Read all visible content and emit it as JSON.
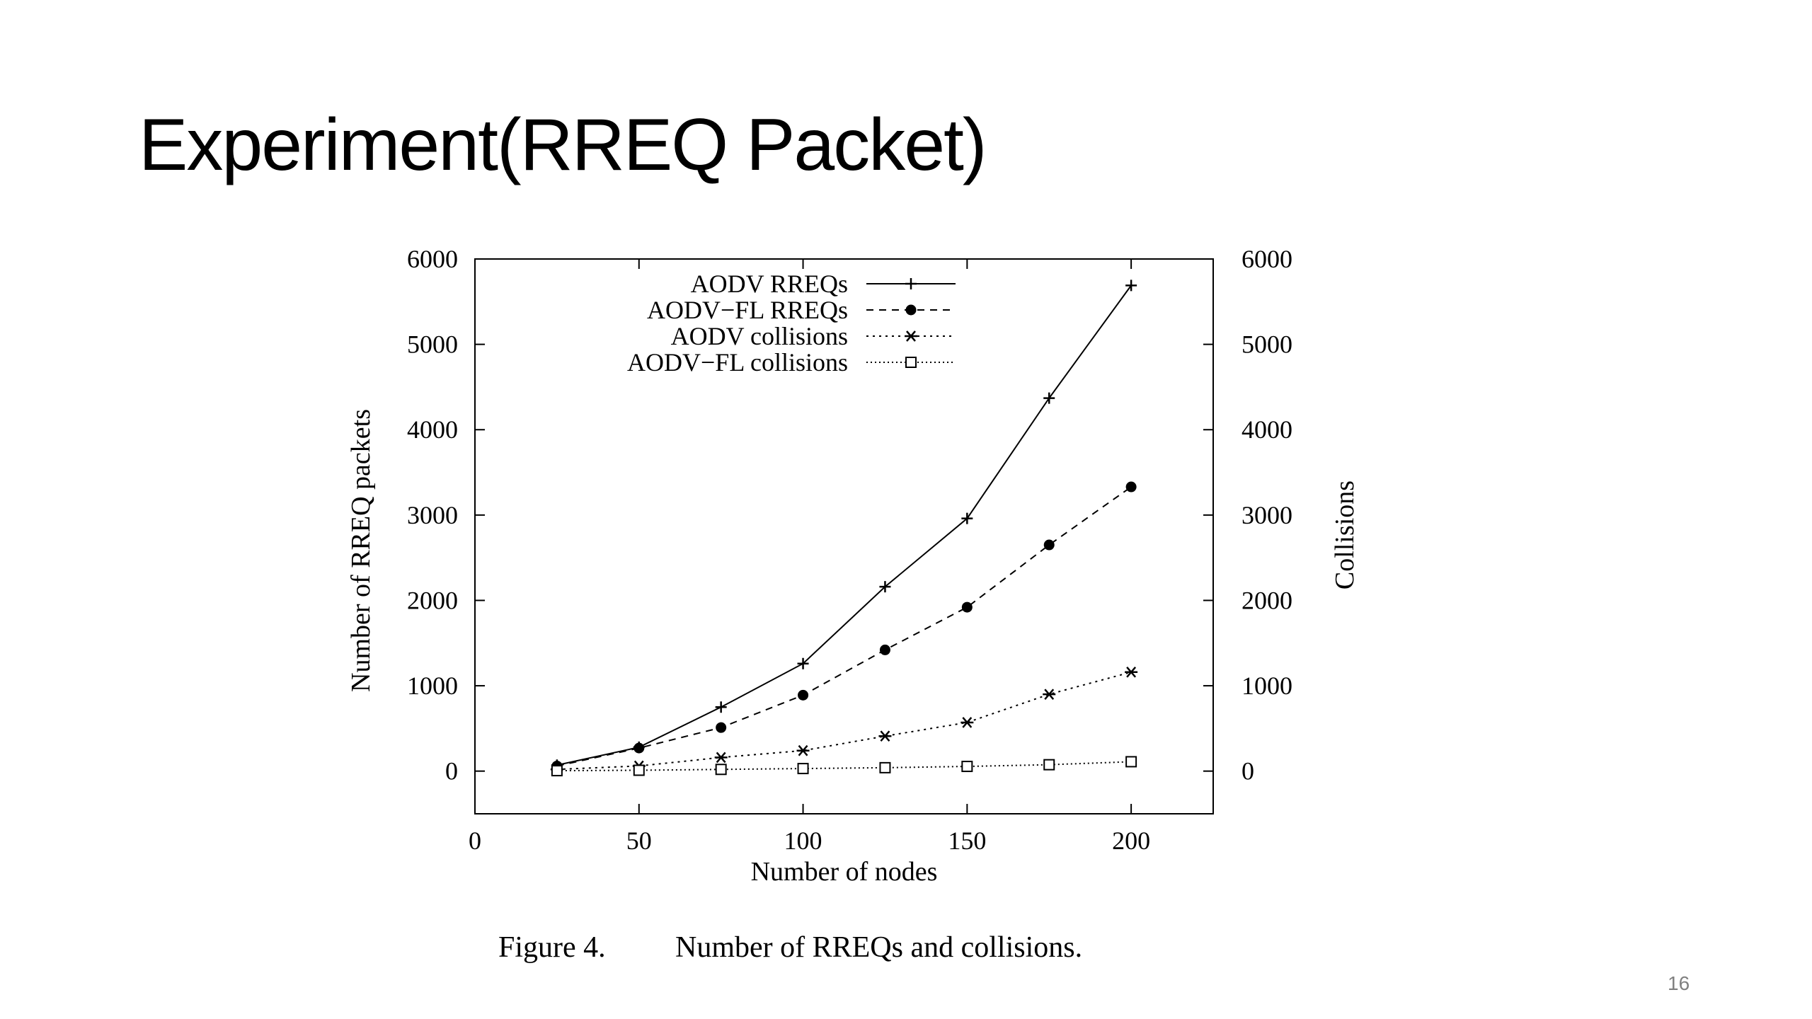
{
  "slide": {
    "title": "Experiment(RREQ Packet)",
    "page_number": "16"
  },
  "chart_data": {
    "type": "line",
    "title": "",
    "caption_label": "Figure 4.",
    "caption_text": "Number of RREQs and collisions.",
    "xlabel": "Number of nodes",
    "ylabel": "Number of RREQ packets",
    "y2label": "Collisions",
    "xlim": [
      0,
      225
    ],
    "ylim": [
      -500,
      6000
    ],
    "y2lim": [
      -500,
      6000
    ],
    "x_ticks": [
      0,
      50,
      100,
      150,
      200
    ],
    "y_ticks": [
      0,
      1000,
      2000,
      3000,
      4000,
      5000,
      6000
    ],
    "y2_ticks": [
      0,
      1000,
      2000,
      3000,
      4000,
      5000,
      6000
    ],
    "grid": false,
    "legend_position": "top-left",
    "x": [
      25,
      50,
      75,
      100,
      125,
      150,
      175,
      200
    ],
    "series": [
      {
        "name": "AODV RREQs",
        "axis": "left",
        "line_style": "solid",
        "marker": "plus",
        "values": [
          70,
          280,
          750,
          1260,
          2160,
          2960,
          4370,
          5690
        ]
      },
      {
        "name": "AODV−FL RREQs",
        "axis": "left",
        "line_style": "dashed",
        "marker": "filled-circle",
        "values": [
          60,
          270,
          510,
          890,
          1420,
          1920,
          2650,
          3330
        ]
      },
      {
        "name": "AODV collisions",
        "axis": "right",
        "line_style": "dotted",
        "marker": "asterisk",
        "values": [
          20,
          60,
          160,
          240,
          410,
          570,
          900,
          1160
        ]
      },
      {
        "name": "AODV−FL collisions",
        "axis": "right",
        "line_style": "fine-dotted",
        "marker": "open-square",
        "values": [
          5,
          10,
          20,
          30,
          40,
          55,
          75,
          110
        ]
      }
    ]
  },
  "colors": {
    "background": "#ffffff",
    "ink": "#000000",
    "slide_number": "#808080"
  }
}
